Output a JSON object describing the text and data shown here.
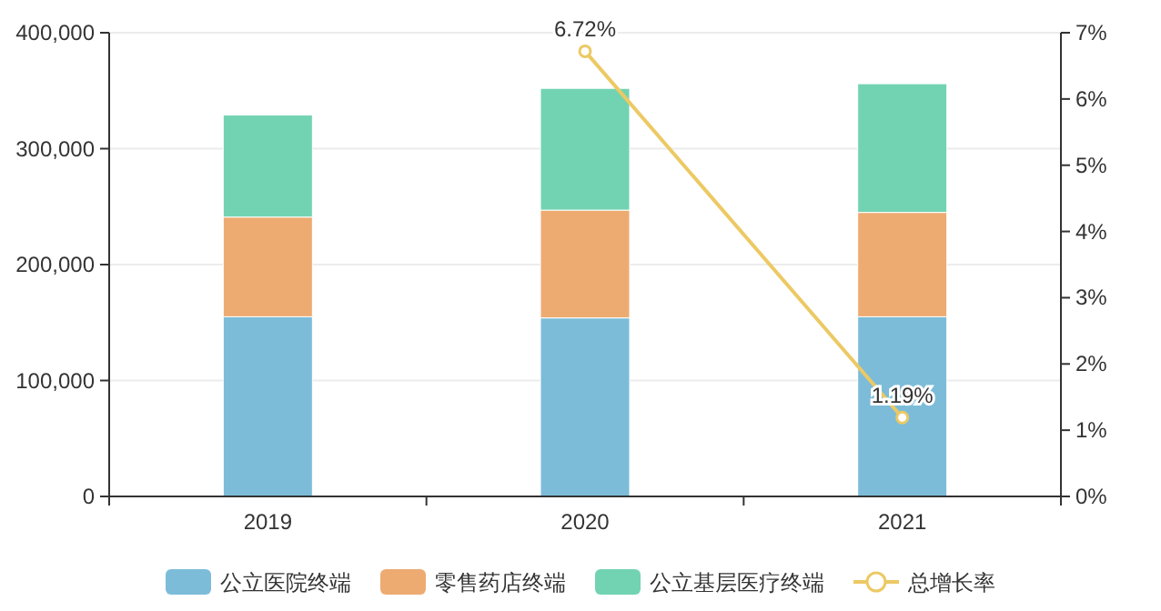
{
  "chart_data": {
    "type": "bar",
    "stacked": true,
    "categories": [
      "2019",
      "2020",
      "2021"
    ],
    "series": [
      {
        "name": "公立医院终端",
        "color": "#7cbcd9",
        "values": [
          155000,
          154000,
          155000
        ]
      },
      {
        "name": "零售药店终端",
        "color": "#edab72",
        "values": [
          86000,
          93000,
          90000
        ]
      },
      {
        "name": "公立基层医疗终端",
        "color": "#72d3b2",
        "values": [
          88000,
          105000,
          111000
        ]
      },
      {
        "name": "总增长率",
        "type": "line",
        "axis": "y2",
        "color": "#ecc964",
        "marker": "circle",
        "values": [
          null,
          6.72,
          1.19
        ],
        "value_labels": [
          null,
          "6.72%",
          "1.19%"
        ]
      }
    ],
    "ylim": [
      0,
      400000
    ],
    "yticks": [
      {
        "value": 0,
        "label": "0"
      },
      {
        "value": 100000,
        "label": "100,000"
      },
      {
        "value": 200000,
        "label": "200,000"
      },
      {
        "value": 300000,
        "label": "300,000"
      },
      {
        "value": 400000,
        "label": "400,000"
      }
    ],
    "y2lim": [
      0,
      7
    ],
    "y2ticks": [
      {
        "value": 0,
        "label": "0%"
      },
      {
        "value": 1,
        "label": "1%"
      },
      {
        "value": 2,
        "label": "2%"
      },
      {
        "value": 3,
        "label": "3%"
      },
      {
        "value": 4,
        "label": "4%"
      },
      {
        "value": 5,
        "label": "5%"
      },
      {
        "value": 6,
        "label": "6%"
      },
      {
        "value": 7,
        "label": "7%"
      }
    ],
    "grid": "y",
    "legend": "bottom"
  }
}
